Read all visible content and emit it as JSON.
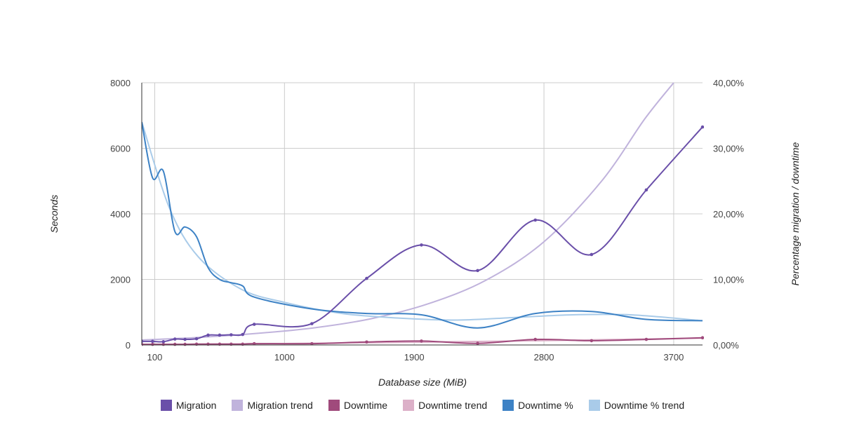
{
  "chart_data": {
    "type": "line",
    "xlabel": "Database size (MiB)",
    "ylabel": "Seconds",
    "y2label": "Percentage migration / downtime",
    "xlim": [
      10,
      3900
    ],
    "ylim": [
      0,
      8000
    ],
    "y2lim": [
      0,
      40
    ],
    "x_ticks": [
      100,
      1000,
      1900,
      2800,
      3700
    ],
    "y_ticks": [
      0,
      2000,
      4000,
      6000,
      8000
    ],
    "y2_ticks": [
      0,
      10,
      20,
      30,
      40
    ],
    "y_tick_labels": [
      "0",
      "2000",
      "4000",
      "6000",
      "8000"
    ],
    "y2_tick_labels": [
      "0,00%",
      "10,00%",
      "20,00%",
      "30,00%",
      "40,00%"
    ],
    "grid": true,
    "legend_position": "bottom",
    "series": [
      {
        "name": "Migration",
        "axis": "left",
        "color": "#6a4fa9",
        "markers": true,
        "x": [
          10,
          85,
          160,
          240,
          310,
          390,
          470,
          550,
          630,
          710,
          790,
          1190,
          1570,
          1950,
          2340,
          2740,
          3130,
          3510,
          3900
        ],
        "y": [
          110,
          110,
          100,
          180,
          170,
          190,
          300,
          300,
          310,
          320,
          630,
          650,
          2030,
          3050,
          2270,
          3810,
          2760,
          4730,
          6650
        ]
      },
      {
        "name": "Migration trend",
        "axis": "left",
        "color": "#c0b3dc",
        "markers": false,
        "x": [
          10,
          400,
          800,
          1200,
          1600,
          2000,
          2400,
          2800,
          3200,
          3500,
          3700
        ],
        "y": [
          150,
          230,
          350,
          520,
          800,
          1260,
          1980,
          3150,
          5000,
          6900,
          8000
        ]
      },
      {
        "name": "Downtime",
        "axis": "left",
        "color": "#a04a7c",
        "markers": true,
        "x": [
          10,
          85,
          160,
          240,
          310,
          390,
          470,
          550,
          630,
          710,
          790,
          1190,
          1570,
          1950,
          2340,
          2740,
          3130,
          3510,
          3900
        ],
        "y": [
          20,
          20,
          20,
          20,
          20,
          25,
          25,
          25,
          25,
          25,
          40,
          40,
          90,
          120,
          50,
          170,
          130,
          170,
          220
        ]
      },
      {
        "name": "Downtime trend",
        "axis": "left",
        "color": "#dcb0c8",
        "markers": false,
        "x": [
          10,
          800,
          1600,
          2400,
          3200,
          3900
        ],
        "y": [
          10,
          35,
          70,
          110,
          160,
          210
        ]
      },
      {
        "name": "Downtime %",
        "axis": "right",
        "color": "#3d82c5",
        "markers": false,
        "x": [
          10,
          85,
          160,
          240,
          310,
          390,
          470,
          550,
          630,
          710,
          790,
          1190,
          1570,
          1950,
          2340,
          2740,
          3130,
          3510,
          3900
        ],
        "y": [
          34,
          25.5,
          26.5,
          17.3,
          18,
          16.5,
          11.8,
          10,
          9.5,
          9,
          7.3,
          5.5,
          4.8,
          4.6,
          2.6,
          4.8,
          5.1,
          3.9,
          3.7
        ]
      },
      {
        "name": "Downtime % trend",
        "axis": "right",
        "color": "#a9cbe9",
        "markers": false,
        "x": [
          10,
          200,
          400,
          700,
          1000,
          1400,
          1800,
          2200,
          2600,
          3000,
          3400,
          3900
        ],
        "y": [
          34,
          21,
          13.5,
          8.5,
          6.5,
          4.8,
          4.1,
          3.8,
          4.2,
          4.6,
          4.6,
          3.7
        ]
      }
    ]
  }
}
